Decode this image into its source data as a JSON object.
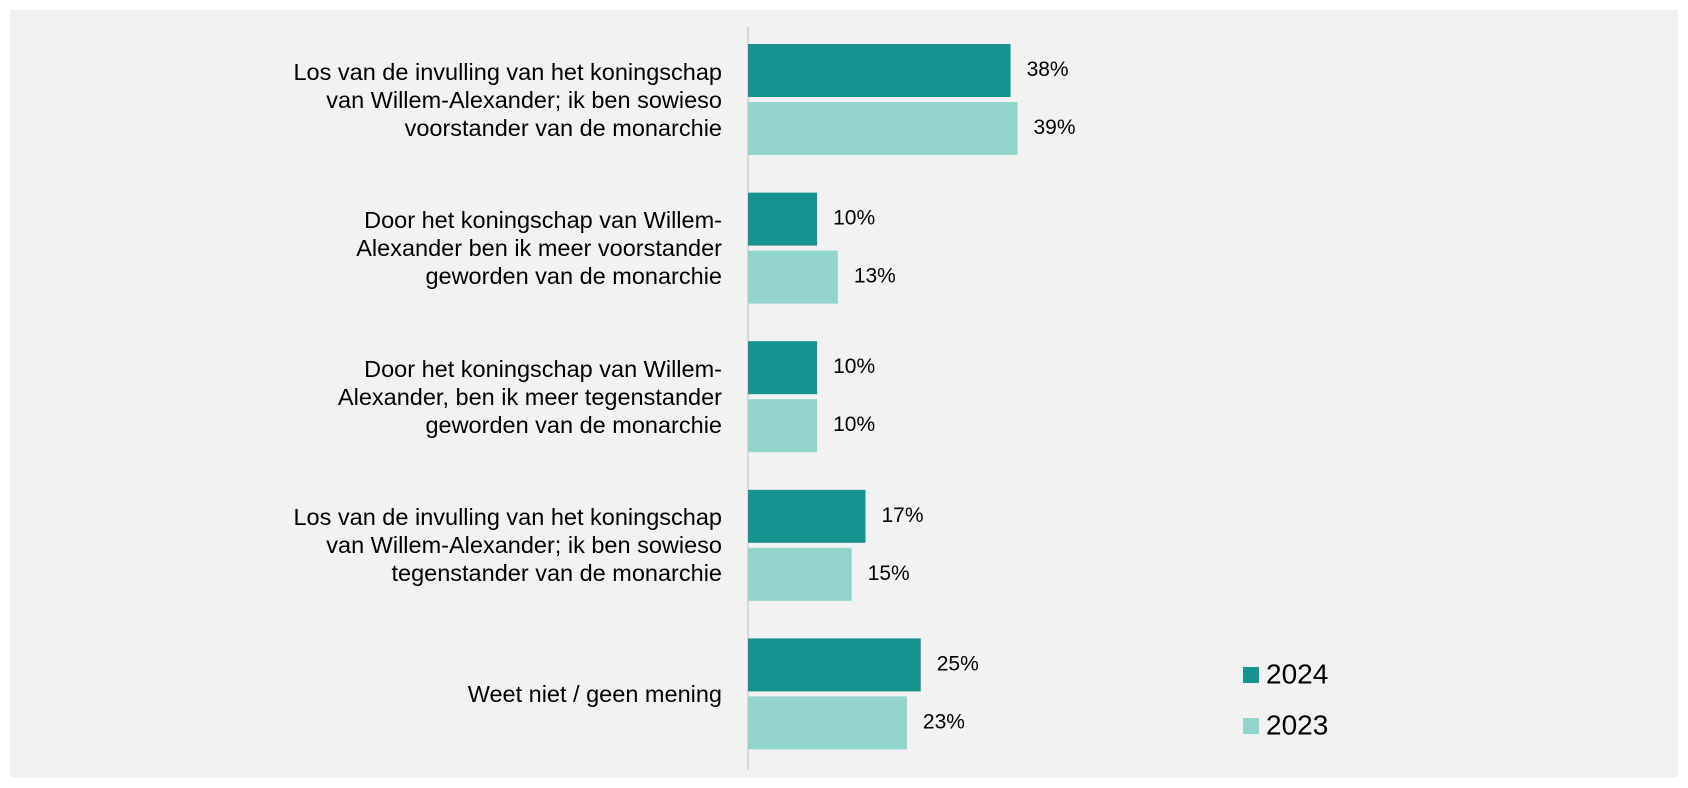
{
  "chart_data": {
    "type": "bar",
    "orientation": "horizontal",
    "categories": [
      "Los van de invulling van het koningschap van Willem-Alexander; ik ben sowieso voorstander van de monarchie",
      "Door het koningschap van Willem-Alexander ben ik meer voorstander geworden van de monarchie",
      "Door het koningschap van Willem-Alexander, ben ik meer tegenstander geworden van de monarchie",
      "Los van de invulling van het koningschap van Willem-Alexander; ik ben sowieso tegenstander van de monarchie",
      "Weet niet / geen mening"
    ],
    "series": [
      {
        "name": "2024",
        "color": "#16938f",
        "values": [
          38,
          10,
          10,
          17,
          25
        ],
        "value_labels": [
          "38%",
          "10%",
          "10%",
          "17%",
          "25%"
        ]
      },
      {
        "name": "2023",
        "color": "#93d5cc",
        "values": [
          39,
          13,
          10,
          15,
          23
        ],
        "value_labels": [
          "39%",
          "13%",
          "10%",
          "15%",
          "23%"
        ]
      }
    ],
    "legend": "right"
  }
}
